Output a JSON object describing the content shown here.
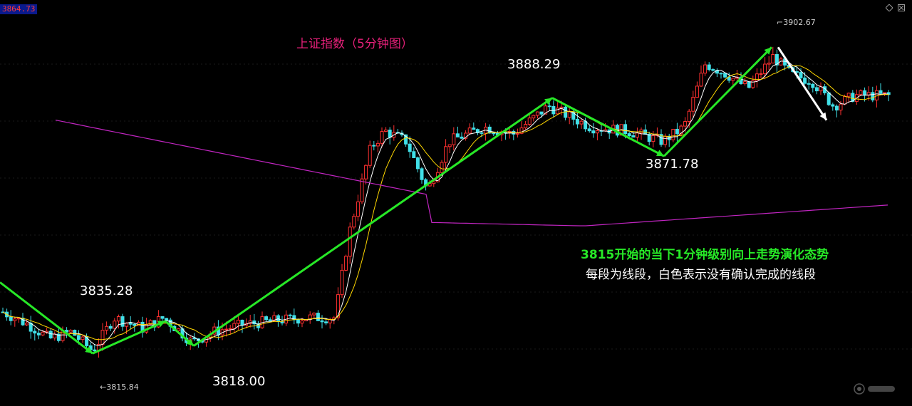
{
  "header": {
    "price_box": "3864.73"
  },
  "chart_data": {
    "type": "candlestick",
    "title": "上证指数（5分钟图）",
    "ylim": [
      3807,
      3910
    ],
    "swing_labels": [
      {
        "text": "3835.28",
        "value": 3835.28
      },
      {
        "text": "3815.84",
        "value": 3815.84
      },
      {
        "text": "3818.00",
        "value": 3818.0
      },
      {
        "text": "3888.29",
        "value": 3888.29
      },
      {
        "text": "3871.78",
        "value": 3871.78
      },
      {
        "text": "3902.67",
        "value": 3902.67
      }
    ],
    "segments_confirmed": [
      {
        "from": 3836,
        "to": 3815.84
      },
      {
        "from": 3815.84,
        "to": 3825
      },
      {
        "from": 3825,
        "to": 3818.0
      },
      {
        "from": 3818.0,
        "to": 3888.29
      },
      {
        "from": 3888.29,
        "to": 3871.78
      },
      {
        "from": 3871.78,
        "to": 3902.67
      }
    ],
    "segments_unconfirmed": [
      {
        "from": 3902.67,
        "to": 3882
      }
    ],
    "ma_long_colors": "#c025c0",
    "ma_colors": [
      "#ffffff",
      "#ffd700"
    ],
    "up_color": "#ff3030",
    "down_color": "#40e0e8",
    "segment_color": "#27e827",
    "unconfirmed_color": "#ffffff"
  },
  "annotations": {
    "note_green": "3815开始的当下1分钟级别向上走势演化态势",
    "note_white": "每段为线段，白色表示没有确认完成的线段"
  },
  "icons": {
    "top_right_1": "diamond-icon",
    "top_right_2": "close-box-icon",
    "watermark": "logo-watermark-icon"
  }
}
